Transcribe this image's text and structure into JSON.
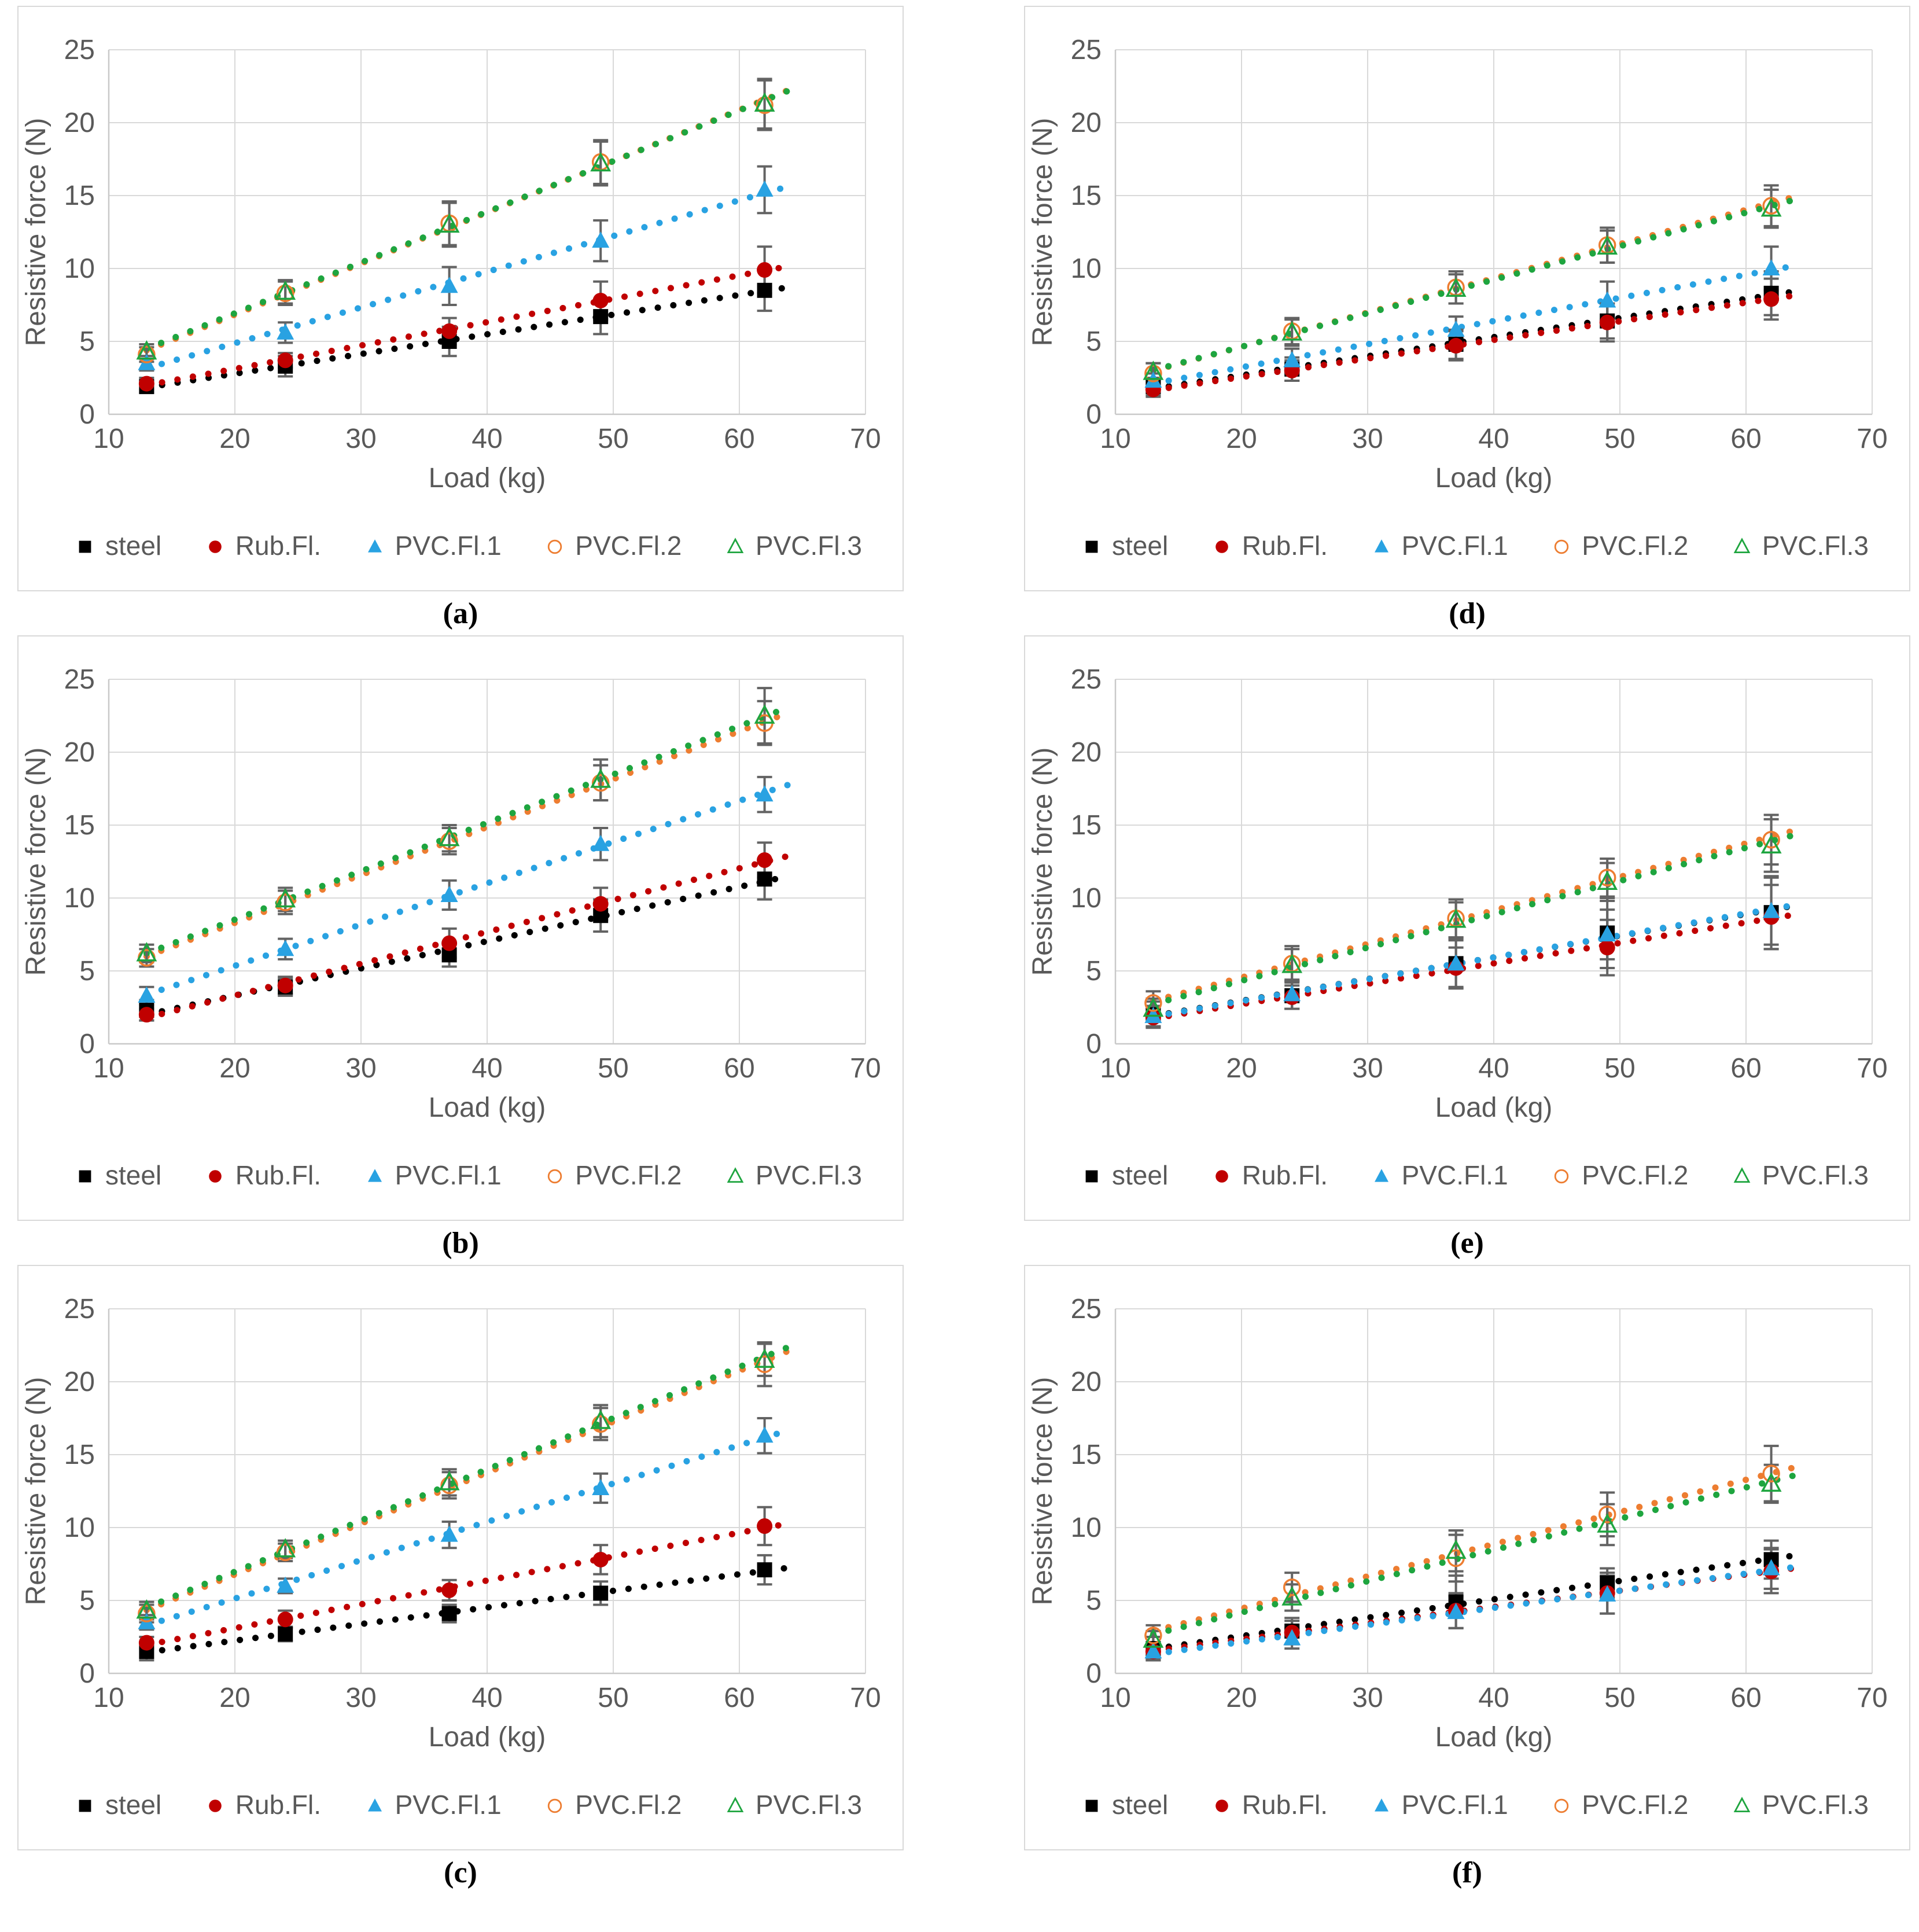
{
  "page": {
    "background": "#ffffff"
  },
  "styles": {
    "text_color": "#595959",
    "grid_color": "#d9d9d9",
    "axis_line_color": "#c9c9c9",
    "error_bar_color": "#636363",
    "panel_border_color": "#d9d9d9",
    "series_colors": {
      "steel": "#000000",
      "Rub.Fl.": "#c00000",
      "PVC.Fl.1": "#29a2e2",
      "PVC.Fl.2": "#ed7d31",
      "PVC.Fl.3": "#1ea53f"
    }
  },
  "chart_data": [
    {
      "id": "a",
      "caption": "(a)",
      "type": "scatter",
      "xlabel": "Load (kg)",
      "ylabel": "Resistive force (N)",
      "xlim": [
        10,
        70
      ],
      "ylim": [
        0,
        25
      ],
      "xticks": [
        10,
        20,
        30,
        40,
        50,
        60,
        70
      ],
      "yticks": [
        0,
        5,
        10,
        15,
        20,
        25
      ],
      "grid": true,
      "legend_position": "bottom",
      "x": [
        13,
        24,
        37,
        49,
        62
      ],
      "series": [
        {
          "name": "steel",
          "marker": "square-filled",
          "color": "#000000",
          "trendline": "dotted",
          "values": [
            1.9,
            3.3,
            5.0,
            6.7,
            8.5
          ],
          "errors": [
            0.4,
            0.7,
            1.0,
            1.2,
            1.4
          ]
        },
        {
          "name": "Rub.Fl.",
          "marker": "circle-filled",
          "color": "#c00000",
          "trendline": "dotted",
          "values": [
            2.1,
            3.7,
            5.7,
            7.8,
            9.9
          ],
          "errors": [
            0.4,
            0.5,
            0.9,
            1.3,
            1.6
          ]
        },
        {
          "name": "PVC.Fl.1",
          "marker": "triangle-filled",
          "color": "#29a2e2",
          "trendline": "dotted",
          "values": [
            3.5,
            5.6,
            8.8,
            11.9,
            15.4
          ],
          "errors": [
            0.5,
            0.7,
            1.3,
            1.4,
            1.6
          ]
        },
        {
          "name": "PVC.Fl.2",
          "marker": "circle-open",
          "color": "#ed7d31",
          "trendline": "dotted",
          "values": [
            4.1,
            8.3,
            13.1,
            17.3,
            21.2
          ],
          "errors": [
            0.5,
            0.8,
            1.5,
            1.5,
            1.7
          ]
        },
        {
          "name": "PVC.Fl.3",
          "marker": "triangle-open",
          "color": "#1ea53f",
          "trendline": "dotted",
          "values": [
            4.3,
            8.4,
            13.0,
            17.2,
            21.3
          ],
          "errors": [
            0.5,
            0.8,
            1.5,
            1.5,
            1.7
          ]
        }
      ]
    },
    {
      "id": "b",
      "caption": "(b)",
      "type": "scatter",
      "xlabel": "Load (kg)",
      "ylabel": "Resistive force (N)",
      "xlim": [
        10,
        70
      ],
      "ylim": [
        0,
        25
      ],
      "xticks": [
        10,
        20,
        30,
        40,
        50,
        60,
        70
      ],
      "yticks": [
        0,
        5,
        10,
        15,
        20,
        25
      ],
      "grid": true,
      "legend_position": "bottom",
      "x": [
        13,
        24,
        37,
        49,
        62
      ],
      "series": [
        {
          "name": "steel",
          "marker": "square-filled",
          "color": "#000000",
          "trendline": "dotted",
          "values": [
            2.3,
            3.9,
            6.1,
            8.8,
            11.3
          ],
          "errors": [
            0.7,
            0.6,
            0.8,
            1.1,
            1.4
          ]
        },
        {
          "name": "Rub.Fl.",
          "marker": "circle-filled",
          "color": "#c00000",
          "trendline": "dotted",
          "values": [
            2.0,
            4.0,
            6.9,
            9.6,
            12.6
          ],
          "errors": [
            0.4,
            0.6,
            1.0,
            1.1,
            1.2
          ]
        },
        {
          "name": "PVC.Fl.1",
          "marker": "triangle-filled",
          "color": "#29a2e2",
          "trendline": "dotted",
          "values": [
            3.3,
            6.5,
            10.2,
            13.7,
            17.1
          ],
          "errors": [
            0.6,
            0.7,
            1.0,
            1.1,
            1.2
          ]
        },
        {
          "name": "PVC.Fl.2",
          "marker": "circle-open",
          "color": "#ed7d31",
          "trendline": "dotted",
          "values": [
            5.9,
            9.7,
            13.9,
            17.9,
            22.0
          ],
          "errors": [
            0.6,
            0.8,
            0.9,
            1.2,
            1.5
          ]
        },
        {
          "name": "PVC.Fl.3",
          "marker": "triangle-open",
          "color": "#1ea53f",
          "trendline": "dotted",
          "values": [
            6.2,
            9.9,
            14.1,
            18.1,
            22.5
          ],
          "errors": [
            0.6,
            0.8,
            0.9,
            1.4,
            1.9
          ]
        }
      ]
    },
    {
      "id": "c",
      "caption": "(c)",
      "type": "scatter",
      "xlabel": "Load (kg)",
      "ylabel": "Resistive force (N)",
      "xlim": [
        10,
        70
      ],
      "ylim": [
        0,
        25
      ],
      "xticks": [
        10,
        20,
        30,
        40,
        50,
        60,
        70
      ],
      "yticks": [
        0,
        5,
        10,
        15,
        20,
        25
      ],
      "grid": true,
      "legend_position": "bottom",
      "x": [
        13,
        24,
        37,
        49,
        62
      ],
      "series": [
        {
          "name": "steel",
          "marker": "square-filled",
          "color": "#000000",
          "trendline": "dotted",
          "values": [
            1.5,
            2.7,
            4.1,
            5.5,
            7.1
          ],
          "errors": [
            0.6,
            0.5,
            0.6,
            0.8,
            1.0
          ]
        },
        {
          "name": "Rub.Fl.",
          "marker": "circle-filled",
          "color": "#c00000",
          "trendline": "dotted",
          "values": [
            2.1,
            3.7,
            5.7,
            7.8,
            10.1
          ],
          "errors": [
            0.4,
            0.6,
            0.7,
            1.0,
            1.3
          ]
        },
        {
          "name": "PVC.Fl.1",
          "marker": "triangle-filled",
          "color": "#29a2e2",
          "trendline": "dotted",
          "values": [
            3.5,
            6.0,
            9.5,
            12.7,
            16.3
          ],
          "errors": [
            0.5,
            0.5,
            0.9,
            1.0,
            1.2
          ]
        },
        {
          "name": "PVC.Fl.2",
          "marker": "circle-open",
          "color": "#ed7d31",
          "trendline": "dotted",
          "values": [
            4.1,
            8.3,
            12.9,
            17.1,
            21.2
          ],
          "errors": [
            0.6,
            0.6,
            0.9,
            1.1,
            1.5
          ]
        },
        {
          "name": "PVC.Fl.3",
          "marker": "triangle-open",
          "color": "#1ea53f",
          "trendline": "dotted",
          "values": [
            4.3,
            8.5,
            13.1,
            17.3,
            21.5
          ],
          "errors": [
            0.6,
            0.6,
            0.9,
            1.1,
            1.1
          ]
        }
      ]
    },
    {
      "id": "d",
      "caption": "(d)",
      "type": "scatter",
      "xlabel": "Load (kg)",
      "ylabel": "Resistive force (N)",
      "xlim": [
        10,
        70
      ],
      "ylim": [
        0,
        25
      ],
      "xticks": [
        10,
        20,
        30,
        40,
        50,
        60,
        70
      ],
      "yticks": [
        0,
        5,
        10,
        15,
        20,
        25
      ],
      "grid": true,
      "legend_position": "bottom",
      "x": [
        13,
        24,
        37,
        49,
        62
      ],
      "series": [
        {
          "name": "steel",
          "marker": "square-filled",
          "color": "#000000",
          "trendline": "dotted",
          "values": [
            1.9,
            3.1,
            4.8,
            6.4,
            8.3
          ],
          "errors": [
            0.6,
            0.8,
            1.0,
            1.2,
            1.5
          ]
        },
        {
          "name": "Rub.Fl.",
          "marker": "circle-filled",
          "color": "#c00000",
          "trendline": "dotted",
          "values": [
            1.7,
            3.0,
            4.7,
            6.3,
            7.9
          ],
          "errors": [
            0.5,
            0.7,
            1.0,
            1.3,
            1.4
          ]
        },
        {
          "name": "PVC.Fl.1",
          "marker": "triangle-filled",
          "color": "#29a2e2",
          "trendline": "dotted",
          "values": [
            2.3,
            3.7,
            5.8,
            7.8,
            10.0
          ],
          "errors": [
            0.5,
            0.8,
            0.9,
            1.3,
            1.5
          ]
        },
        {
          "name": "PVC.Fl.2",
          "marker": "circle-open",
          "color": "#ed7d31",
          "trendline": "dotted",
          "values": [
            2.8,
            5.7,
            8.7,
            11.6,
            14.3
          ],
          "errors": [
            0.7,
            0.9,
            1.1,
            1.2,
            1.4
          ]
        },
        {
          "name": "PVC.Fl.3",
          "marker": "triangle-open",
          "color": "#1ea53f",
          "trendline": "dotted",
          "values": [
            2.9,
            5.6,
            8.6,
            11.5,
            14.1
          ],
          "errors": [
            0.6,
            0.9,
            1.0,
            1.1,
            1.3
          ]
        }
      ]
    },
    {
      "id": "e",
      "caption": "(e)",
      "type": "scatter",
      "xlabel": "Load (kg)",
      "ylabel": "Resistive force (N)",
      "xlim": [
        10,
        70
      ],
      "ylim": [
        0,
        25
      ],
      "xticks": [
        10,
        20,
        30,
        40,
        50,
        60,
        70
      ],
      "yticks": [
        0,
        5,
        10,
        15,
        20,
        25
      ],
      "grid": true,
      "legend_position": "bottom",
      "x": [
        13,
        24,
        37,
        49,
        62
      ],
      "series": [
        {
          "name": "steel",
          "marker": "square-filled",
          "color": "#000000",
          "trendline": "dotted",
          "values": [
            2.0,
            3.3,
            5.5,
            7.6,
            9.0
          ],
          "errors": [
            0.9,
            0.9,
            1.7,
            2.4,
            2.5
          ]
        },
        {
          "name": "Rub.Fl.",
          "marker": "circle-filled",
          "color": "#c00000",
          "trendline": "dotted",
          "values": [
            1.8,
            3.2,
            5.2,
            6.6,
            8.7
          ],
          "errors": [
            0.6,
            0.8,
            1.4,
            1.9,
            2.2
          ]
        },
        {
          "name": "PVC.Fl.1",
          "marker": "triangle-filled",
          "color": "#29a2e2",
          "trendline": "dotted",
          "values": [
            1.9,
            3.4,
            5.5,
            7.5,
            9.1
          ],
          "errors": [
            0.7,
            1.0,
            1.6,
            1.7,
            2.3
          ]
        },
        {
          "name": "PVC.Fl.2",
          "marker": "circle-open",
          "color": "#ed7d31",
          "trendline": "dotted",
          "values": [
            2.8,
            5.5,
            8.6,
            11.4,
            14.0
          ],
          "errors": [
            0.8,
            1.2,
            1.3,
            1.3,
            1.7
          ]
        },
        {
          "name": "PVC.Fl.3",
          "marker": "triangle-open",
          "color": "#1ea53f",
          "trendline": "dotted",
          "values": [
            2.4,
            5.4,
            8.5,
            11.1,
            13.6
          ],
          "errors": [
            0.7,
            1.1,
            1.2,
            1.3,
            1.8
          ]
        }
      ]
    },
    {
      "id": "f",
      "caption": "(f)",
      "type": "scatter",
      "xlabel": "Load (kg)",
      "ylabel": "Resistive force (N)",
      "xlim": [
        10,
        70
      ],
      "ylim": [
        0,
        25
      ],
      "xticks": [
        10,
        20,
        30,
        40,
        50,
        60,
        70
      ],
      "yticks": [
        0,
        5,
        10,
        15,
        20,
        25
      ],
      "grid": true,
      "legend_position": "bottom",
      "x": [
        13,
        24,
        37,
        49,
        62
      ],
      "series": [
        {
          "name": "steel",
          "marker": "square-filled",
          "color": "#000000",
          "trendline": "dotted",
          "values": [
            1.7,
            2.9,
            4.9,
            6.2,
            7.8
          ],
          "errors": [
            0.8,
            0.9,
            1.8,
            1.0,
            1.3
          ]
        },
        {
          "name": "Rub.Fl.",
          "marker": "circle-filled",
          "color": "#c00000",
          "trendline": "dotted",
          "values": [
            1.5,
            2.8,
            4.3,
            5.5,
            7.0
          ],
          "errors": [
            0.5,
            0.8,
            1.2,
            1.4,
            1.5
          ]
        },
        {
          "name": "PVC.Fl.1",
          "marker": "triangle-filled",
          "color": "#29a2e2",
          "trendline": "dotted",
          "values": [
            1.5,
            2.4,
            4.2,
            5.4,
            7.2
          ],
          "errors": [
            0.6,
            0.7,
            1.1,
            1.3,
            1.4
          ]
        },
        {
          "name": "PVC.Fl.2",
          "marker": "circle-open",
          "color": "#ed7d31",
          "trendline": "dotted",
          "values": [
            2.6,
            5.9,
            7.9,
            10.9,
            13.7
          ],
          "errors": [
            0.7,
            1.0,
            1.6,
            1.5,
            1.9
          ]
        },
        {
          "name": "PVC.Fl.3",
          "marker": "triangle-open",
          "color": "#1ea53f",
          "trendline": "dotted",
          "values": [
            2.3,
            5.2,
            8.4,
            10.2,
            13.0
          ],
          "errors": [
            0.6,
            0.9,
            1.4,
            1.4,
            1.3
          ]
        }
      ]
    }
  ]
}
